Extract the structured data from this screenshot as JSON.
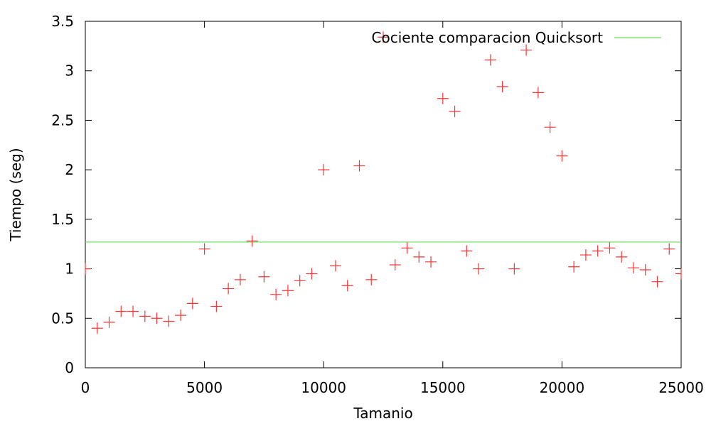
{
  "chart_data": {
    "type": "scatter",
    "title": "",
    "xlabel": "Tamanio",
    "ylabel": "Tiempo (seg)",
    "xlim": [
      0,
      25000
    ],
    "ylim": [
      0,
      3.5
    ],
    "x_ticks": [
      0,
      5000,
      10000,
      15000,
      20000,
      25000
    ],
    "x_tick_labels": [
      "0",
      "5000",
      "10000",
      "15000",
      "20000",
      "25000"
    ],
    "y_ticks": [
      0,
      0.5,
      1,
      1.5,
      2,
      2.5,
      3,
      3.5
    ],
    "y_tick_labels": [
      "0",
      "0.5",
      "1",
      "1.5",
      "2",
      "2.5",
      "3",
      "3.5"
    ],
    "grid": false,
    "legend_position": "top-right",
    "series": [
      {
        "name": "Cociente comparacion Quicksort",
        "marker": "plus",
        "color": "#ff3333",
        "x": [
          0,
          500,
          1000,
          1500,
          2000,
          2500,
          3000,
          3500,
          4000,
          4500,
          5000,
          5500,
          6000,
          6500,
          7000,
          7500,
          8000,
          8500,
          9000,
          9500,
          10000,
          10500,
          11000,
          11500,
          12000,
          12500,
          13000,
          13500,
          14000,
          14500,
          15000,
          15500,
          16000,
          16500,
          17000,
          17500,
          18000,
          18500,
          19000,
          19500,
          20000,
          20500,
          21000,
          21500,
          22000,
          22500,
          23000,
          23500,
          24000,
          24500,
          25000
        ],
        "y": [
          1.0,
          0.4,
          0.46,
          0.57,
          0.57,
          0.52,
          0.5,
          0.47,
          0.53,
          0.65,
          1.2,
          0.62,
          0.8,
          0.89,
          1.28,
          0.92,
          0.74,
          0.78,
          0.88,
          0.95,
          2.0,
          1.03,
          0.83,
          2.04,
          0.89,
          3.34,
          1.04,
          1.21,
          1.12,
          1.07,
          2.72,
          2.59,
          1.18,
          1.0,
          3.11,
          2.84,
          1.0,
          3.21,
          2.78,
          2.43,
          2.14,
          1.02,
          1.14,
          1.18,
          1.21,
          1.12,
          1.01,
          0.99,
          0.87,
          1.2,
          0.95
        ]
      }
    ],
    "reference_line": {
      "y": 1.27,
      "color": "#66dd55"
    }
  }
}
